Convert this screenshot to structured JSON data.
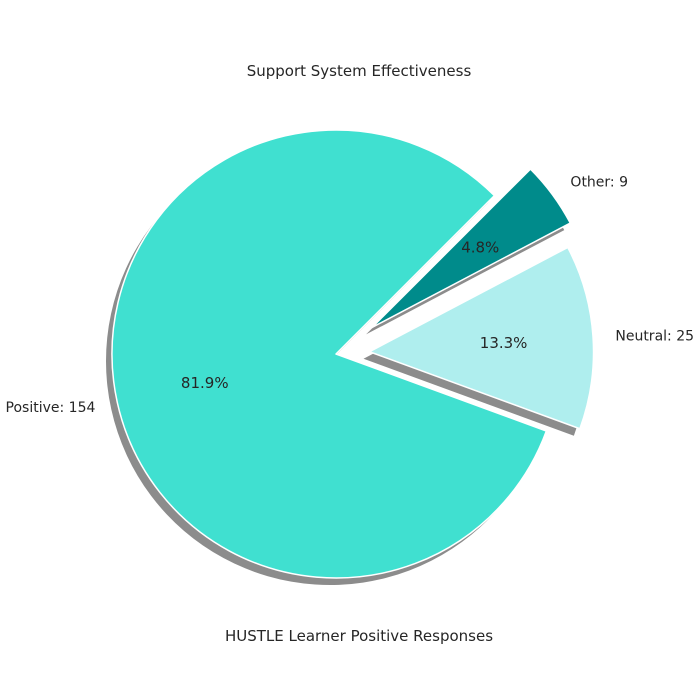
{
  "chart_data": {
    "type": "pie",
    "title": "Support System Effectiveness",
    "xlabel": "HUSTLE Learner Positive Responses",
    "start_angle_deg": 45,
    "direction": "counterclockwise",
    "shadow": true,
    "slices": [
      {
        "label": "Positive: 154",
        "value": 154,
        "percent": "81.9%",
        "color": "#40e0d0",
        "explode": 0
      },
      {
        "label": "Neutral: 25",
        "value": 25,
        "percent": "13.3%",
        "color": "#afeeee",
        "explode": 0.15
      },
      {
        "label": "Other: 9",
        "value": 9,
        "percent": "4.8%",
        "color": "#008b8b",
        "explode": 0.2
      }
    ]
  }
}
